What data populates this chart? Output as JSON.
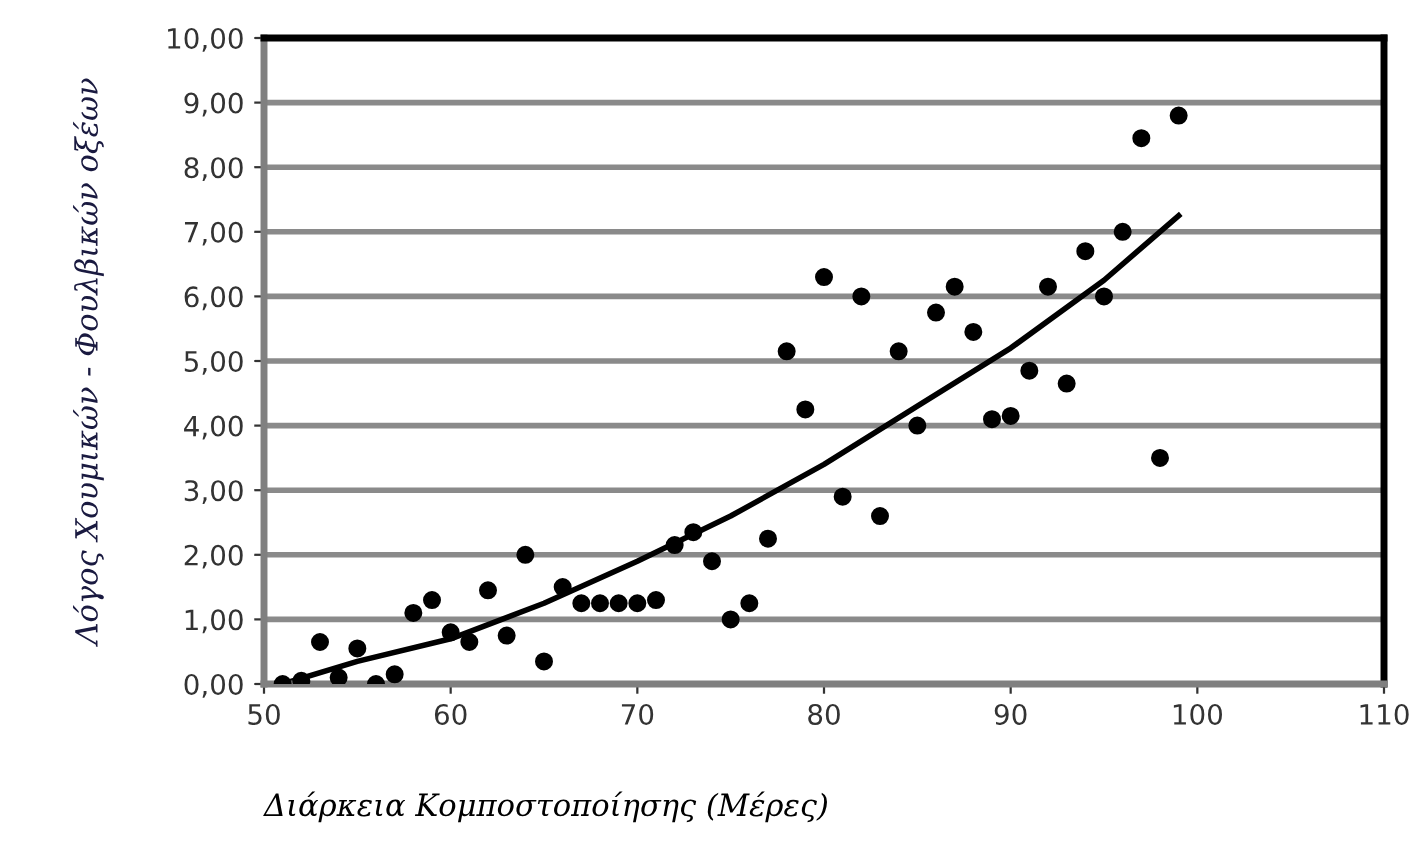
{
  "chart_data": {
    "type": "scatter",
    "xlabel": "Διάρκεια Κομποστοποίησης (Μέρες)",
    "ylabel": "Λόγος Χουμικών - Φουλβικών οξέων",
    "x": [
      51,
      52,
      53,
      54,
      55,
      56,
      57,
      58,
      59,
      60,
      61,
      62,
      63,
      64,
      65,
      66,
      67,
      68,
      69,
      70,
      71,
      72,
      73,
      74,
      75,
      76,
      77,
      78,
      79,
      80,
      81,
      82,
      83,
      84,
      85,
      86,
      87,
      88,
      89,
      90,
      91,
      92,
      93,
      94,
      95,
      96,
      97,
      98,
      99
    ],
    "series": [
      {
        "color": "#000000",
        "marker": "circle",
        "values": [
          0.0,
          0.05,
          0.65,
          0.1,
          0.55,
          0.0,
          0.15,
          1.1,
          1.3,
          0.8,
          0.65,
          1.45,
          0.75,
          2.0,
          0.35,
          1.5,
          1.25,
          1.25,
          1.25,
          1.25,
          1.3,
          2.15,
          2.35,
          1.9,
          1.0,
          1.25,
          2.25,
          5.15,
          4.25,
          6.3,
          2.9,
          6.0,
          2.6,
          5.15,
          4.0,
          5.75,
          6.15,
          5.45,
          4.1,
          4.15,
          4.85,
          6.15,
          4.65,
          6.7,
          6.0,
          7.0,
          8.45,
          3.5,
          8.8
        ]
      },
      {
        "type": "line",
        "color": "#000000",
        "marker": "none",
        "line_style": "solid",
        "x": [
          51,
          55,
          60,
          65,
          70,
          75,
          80,
          85,
          90,
          95,
          99
        ],
        "values": [
          0.0,
          0.35,
          0.7,
          1.25,
          1.9,
          2.6,
          3.4,
          4.3,
          5.2,
          6.25,
          7.25
        ]
      }
    ],
    "xlim": [
      50,
      110
    ],
    "xticks": [
      50,
      60,
      70,
      80,
      90,
      100,
      110
    ],
    "ylim": [
      0,
      10
    ],
    "yticks": [
      {
        "value": 0,
        "label": "0,00"
      },
      {
        "value": 1,
        "label": "1,00"
      },
      {
        "value": 2,
        "label": "2,00"
      },
      {
        "value": 3,
        "label": "3,00"
      },
      {
        "value": 4,
        "label": "4,00"
      },
      {
        "value": 5,
        "label": "5,00"
      },
      {
        "value": 6,
        "label": "6,00"
      },
      {
        "value": 7,
        "label": "7,00"
      },
      {
        "value": 8,
        "label": "8,00"
      },
      {
        "value": 9,
        "label": "9,00"
      },
      {
        "value": 10,
        "label": "10,00"
      }
    ],
    "grid": "y",
    "legend": false
  }
}
